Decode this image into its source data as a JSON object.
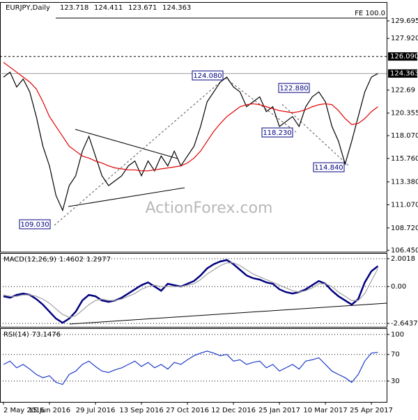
{
  "chart_data": [
    {
      "type": "line",
      "symbol": "EURJPY,Daily",
      "ohlc": [
        123.718,
        124.411,
        123.671,
        124.363
      ],
      "ylim": [
        106.31,
        131.6
      ],
      "yticks": [
        129.695,
        {
          "value": 127.92,
          "label": "127.920"
        },
        122.69,
        120.355,
        {
          "value": 118.07,
          "label": "118.070"
        },
        {
          "value": 115.76,
          "label": "115.760"
        },
        {
          "value": 113.38,
          "label": "113.380"
        },
        {
          "value": 111.07,
          "label": "111.070"
        },
        {
          "value": 108.72,
          "label": "108.720"
        },
        {
          "value": 106.45,
          "label": "106.450"
        }
      ],
      "ref_lines": [
        {
          "value": 126.09,
          "label": "126.090"
        },
        {
          "value": 124.363,
          "label": "124.363"
        }
      ],
      "fe_label": "FE 100.0",
      "annotations": [
        "109.030",
        "124.080",
        "122.880",
        "118.230",
        "114.840"
      ],
      "watermark": "ActionForex.com",
      "grid": false,
      "series": [
        {
          "name": "EURJPY",
          "color": "#000000",
          "values": [
            124.0,
            124.5,
            123.0,
            123.8,
            122.5,
            120.0,
            117.0,
            115.0,
            112.0,
            110.5,
            113.0,
            114.0,
            116.5,
            118.0,
            116.0,
            114.0,
            113.0,
            113.5,
            114.0,
            115.0,
            115.5,
            114.0,
            115.5,
            114.5,
            116.0,
            115.0,
            116.5,
            115.0,
            116.0,
            117.0,
            119.0,
            121.5,
            122.5,
            123.5,
            124.0,
            123.0,
            122.5,
            121.0,
            121.5,
            122.0,
            120.5,
            121.0,
            119.0,
            119.5,
            120.0,
            119.0,
            121.0,
            122.0,
            122.5,
            121.5,
            119.0,
            117.5,
            115.2,
            117.5,
            120.0,
            122.5,
            124.0,
            124.363
          ]
        },
        {
          "name": "MA",
          "color": "#e00000",
          "values": [
            125.5,
            125.0,
            124.5,
            124.0,
            123.5,
            122.8,
            121.5,
            120.0,
            119.0,
            118.0,
            117.0,
            116.5,
            116.0,
            115.8,
            115.5,
            115.3,
            115.0,
            114.8,
            114.7,
            114.6,
            114.6,
            114.5,
            114.5,
            114.6,
            114.7,
            114.8,
            114.9,
            115.0,
            115.3,
            115.8,
            116.5,
            117.5,
            118.5,
            119.3,
            120.0,
            120.5,
            121.0,
            121.2,
            121.3,
            121.2,
            121.0,
            120.8,
            120.6,
            120.5,
            120.4,
            120.5,
            120.7,
            121.0,
            121.2,
            121.3,
            121.2,
            120.6,
            119.8,
            119.2,
            119.3,
            119.8,
            120.5,
            121.0
          ]
        }
      ]
    },
    {
      "type": "line",
      "title": "MACD(12,26,9)",
      "title_values": [
        1.4602,
        1.2977
      ],
      "ylim": [
        -2.89,
        2.4
      ],
      "yticks": [
        2.0018,
        {
          "value": 0,
          "label": "0.00"
        },
        -2.6437
      ],
      "grid": true,
      "series": [
        {
          "name": "MACD",
          "color": "#000080",
          "values": [
            -0.7,
            -0.8,
            -0.6,
            -0.5,
            -0.6,
            -0.9,
            -1.3,
            -1.8,
            -2.3,
            -2.6,
            -2.3,
            -1.8,
            -1.0,
            -0.6,
            -0.7,
            -1.0,
            -1.1,
            -1.0,
            -0.8,
            -0.5,
            -0.2,
            0.1,
            0.3,
            0.0,
            -0.3,
            0.2,
            0.1,
            0.0,
            0.2,
            0.4,
            0.8,
            1.3,
            1.6,
            1.8,
            1.9,
            1.6,
            1.2,
            0.8,
            0.6,
            0.5,
            0.3,
            0.2,
            -0.2,
            -0.4,
            -0.5,
            -0.4,
            -0.2,
            0.1,
            0.4,
            0.2,
            -0.3,
            -0.7,
            -1.0,
            -1.3,
            -0.9,
            0.3,
            1.1,
            1.46
          ]
        },
        {
          "name": "Signal",
          "color": "#a0a0a0",
          "values": [
            -0.6,
            -0.7,
            -0.7,
            -0.6,
            -0.6,
            -0.7,
            -0.9,
            -1.2,
            -1.6,
            -2.0,
            -2.2,
            -2.1,
            -1.7,
            -1.3,
            -1.0,
            -0.9,
            -1.0,
            -1.0,
            -0.9,
            -0.7,
            -0.5,
            -0.2,
            0.0,
            0.1,
            0.0,
            0.0,
            0.0,
            0.0,
            0.1,
            0.2,
            0.5,
            0.9,
            1.2,
            1.5,
            1.7,
            1.7,
            1.5,
            1.2,
            0.9,
            0.7,
            0.5,
            0.3,
            0.1,
            -0.1,
            -0.3,
            -0.4,
            -0.3,
            -0.1,
            0.2,
            0.2,
            0.0,
            -0.4,
            -0.7,
            -1.0,
            -1.0,
            -0.5,
            0.4,
            1.3
          ]
        }
      ]
    },
    {
      "type": "line",
      "title": "RSI(14)",
      "title_values": [
        73.1476
      ],
      "ylim": [
        -1.3,
        109.4
      ],
      "yticks": [
        100,
        70,
        30
      ],
      "grid": true,
      "categories": [
        "2 May 2016",
        null,
        null,
        null,
        null,
        null,
        null,
        "15 Jun 2016",
        null,
        null,
        null,
        null,
        null,
        null,
        "29 Jul 2016",
        null,
        null,
        null,
        null,
        null,
        null,
        "13 Sep 2016",
        null,
        null,
        null,
        null,
        null,
        null,
        "27 Oct 2016",
        null,
        null,
        null,
        null,
        null,
        null,
        "12 Dec 2016",
        null,
        null,
        null,
        null,
        null,
        null,
        "25 Jan 2017",
        null,
        null,
        null,
        null,
        null,
        null,
        "10 Mar 2017",
        null,
        null,
        null,
        null,
        null,
        null,
        "25 Apr 2017",
        null
      ],
      "series": [
        {
          "name": "RSI",
          "color": "#1e3cc8",
          "values": [
            55,
            60,
            50,
            55,
            48,
            40,
            35,
            38,
            28,
            25,
            40,
            45,
            55,
            60,
            52,
            45,
            43,
            47,
            50,
            55,
            60,
            52,
            58,
            50,
            55,
            48,
            58,
            55,
            62,
            68,
            72,
            75,
            72,
            68,
            70,
            60,
            62,
            55,
            58,
            60,
            50,
            55,
            45,
            50,
            55,
            48,
            60,
            62,
            65,
            55,
            45,
            40,
            35,
            28,
            40,
            60,
            72,
            73.1476
          ]
        }
      ]
    }
  ]
}
